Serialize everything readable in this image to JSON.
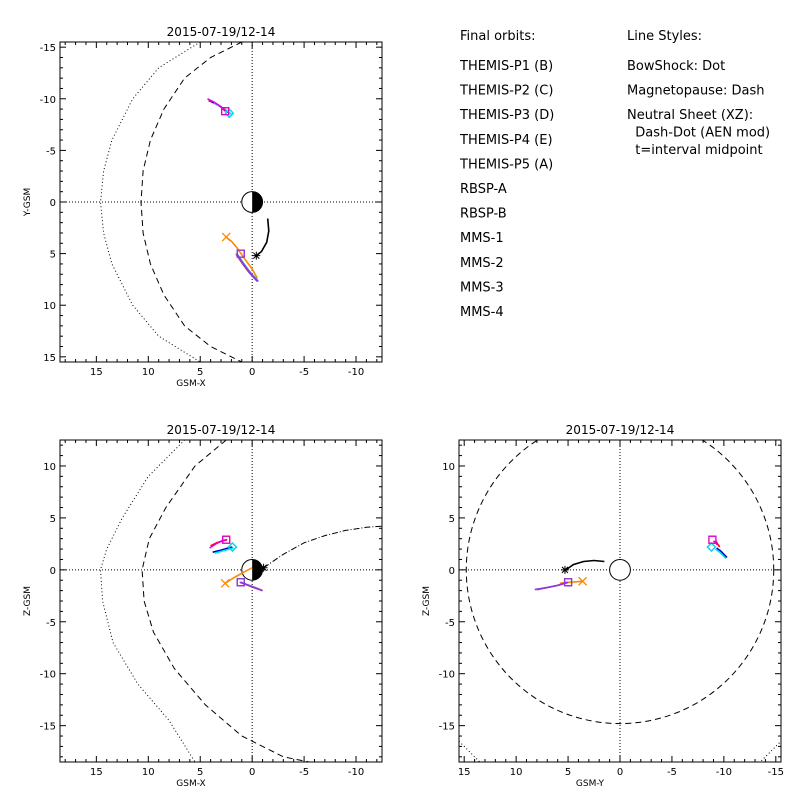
{
  "colors": {
    "THEMIS-P1": "#ff0000",
    "THEMIS-P2": "#00dd00",
    "THEMIS-P3": "#00e5e5",
    "THEMIS-P4": "#0000c8",
    "THEMIS-P5": "#e000e0",
    "RBSP-A": "#ff8800",
    "RBSP-B": "#000000",
    "MMS-1": "#f2b600",
    "MMS-2": "#d05050",
    "MMS-3": "#3f7fd0",
    "MMS-4": "#9a30e0"
  },
  "legend": {
    "orbits_header": "Final orbits:",
    "orbits": [
      {
        "label": "THEMIS-P1 (B)",
        "key": "THEMIS-P1"
      },
      {
        "label": "THEMIS-P2 (C)",
        "key": "THEMIS-P2"
      },
      {
        "label": "THEMIS-P3 (D)",
        "key": "THEMIS-P3"
      },
      {
        "label": "THEMIS-P4 (E)",
        "key": "THEMIS-P4"
      },
      {
        "label": "THEMIS-P5 (A)",
        "key": "THEMIS-P5"
      },
      {
        "label": "RBSP-A",
        "key": "RBSP-A"
      },
      {
        "label": "RBSP-B",
        "key": "RBSP-B"
      },
      {
        "label": "MMS-1",
        "key": "MMS-1"
      },
      {
        "label": "MMS-2",
        "key": "MMS-2"
      },
      {
        "label": "MMS-3",
        "key": "MMS-3"
      },
      {
        "label": "MMS-4",
        "key": "MMS-4"
      }
    ],
    "styles_header": "Line Styles:",
    "styles": [
      "BowShock: Dot",
      "Magnetopause: Dash",
      "Neutral Sheet (XZ):",
      "  Dash-Dot (AEN mod)",
      "  t=interval midpoint"
    ]
  },
  "chart_data": [
    {
      "type": "line",
      "id": "xy",
      "title": "2015-07-19/12-14",
      "xlabel": "GSM-X",
      "ylabel": "Y-GSM",
      "xlim": [
        18.5,
        -12.5
      ],
      "ylim": [
        -15.5,
        15.5
      ],
      "y_inverted": true,
      "xticks": [
        15,
        10,
        5,
        0,
        -5,
        -10
      ],
      "yticks": [
        -15,
        -10,
        -5,
        0,
        5,
        10,
        15
      ],
      "boundaries": {
        "bowshock": [
          [
            5,
            -15.5
          ],
          [
            9,
            -13
          ],
          [
            11.5,
            -10
          ],
          [
            13.5,
            -6
          ],
          [
            14.3,
            -3
          ],
          [
            14.6,
            0
          ],
          [
            14.3,
            3
          ],
          [
            13.5,
            6
          ],
          [
            11.5,
            10
          ],
          [
            9,
            13
          ],
          [
            5,
            15.5
          ]
        ],
        "magnetopause": [
          [
            1,
            -15.5
          ],
          [
            4,
            -14
          ],
          [
            6.5,
            -12
          ],
          [
            8.5,
            -9
          ],
          [
            9.8,
            -6
          ],
          [
            10.5,
            -3
          ],
          [
            10.7,
            0
          ],
          [
            10.5,
            3
          ],
          [
            9.8,
            6
          ],
          [
            8.5,
            9
          ],
          [
            6.5,
            12
          ],
          [
            4,
            14
          ],
          [
            1,
            15.5
          ]
        ],
        "neutral_sheet": []
      },
      "series": [
        {
          "name": "THEMIS-P1",
          "x": [
            4.2,
            3.6,
            3.0,
            2.6
          ],
          "y": [
            -9.8,
            -9.6,
            -9.2,
            -8.8
          ],
          "end": [
            2.6,
            -8.8
          ],
          "marker": "square"
        },
        {
          "name": "THEMIS-P4",
          "x": [
            3.9,
            3.3,
            2.7,
            2.2
          ],
          "y": [
            -9.7,
            -9.4,
            -9.0,
            -8.6
          ],
          "end": [
            2.2,
            -8.6
          ],
          "marker": "diamond"
        },
        {
          "name": "THEMIS-P3",
          "x": [
            3.7,
            3.1,
            2.5,
            2.0
          ],
          "y": [
            -9.6,
            -9.3,
            -8.9,
            -8.5
          ],
          "end": [
            2.2,
            -8.6
          ],
          "marker": "diamond"
        },
        {
          "name": "THEMIS-P5",
          "x": [
            4.3,
            3.7,
            3.1,
            2.6
          ],
          "y": [
            -10.0,
            -9.7,
            -9.3,
            -8.9
          ],
          "end": [
            2.6,
            -8.8
          ],
          "marker": "square"
        },
        {
          "name": "RBSP-A",
          "x": [
            2.5,
            2.0,
            1.5,
            0.8,
            0.0,
            -0.5
          ],
          "y": [
            3.4,
            3.8,
            4.4,
            5.4,
            6.5,
            7.4
          ],
          "end": [
            2.5,
            3.4
          ],
          "marker": "x"
        },
        {
          "name": "RBSP-B",
          "x": [
            -1.5,
            -1.6,
            -1.4,
            -0.9,
            -0.4
          ],
          "y": [
            1.6,
            2.8,
            3.9,
            4.8,
            5.2
          ],
          "end": [
            -0.4,
            5.2
          ],
          "marker": "star"
        },
        {
          "name": "MMS-1",
          "x": [
            1.6,
            1.0,
            0.4,
            -0.4
          ],
          "y": [
            5.0,
            5.9,
            6.7,
            7.6
          ],
          "end": [
            1.1,
            5.0
          ],
          "marker": "square"
        },
        {
          "name": "MMS-2",
          "x": [
            1.5,
            0.9,
            0.3,
            -0.5
          ],
          "y": [
            5.0,
            5.9,
            6.7,
            7.6
          ],
          "end": [
            1.1,
            5.0
          ],
          "marker": "square"
        },
        {
          "name": "MMS-3",
          "x": [
            1.4,
            0.8,
            0.2,
            -0.6
          ],
          "y": [
            5.1,
            6.0,
            6.8,
            7.7
          ],
          "end": [
            1.1,
            5.0
          ],
          "marker": "square"
        },
        {
          "name": "MMS-4",
          "x": [
            1.5,
            0.9,
            0.3,
            -0.5
          ],
          "y": [
            5.1,
            6.0,
            6.8,
            7.7
          ],
          "end": [
            1.1,
            5.0
          ],
          "marker": "square"
        }
      ]
    },
    {
      "type": "line",
      "id": "xz",
      "title": "2015-07-19/12-14",
      "xlabel": "GSM-X",
      "ylabel": "Z-GSM",
      "xlim": [
        18.5,
        -12.5
      ],
      "ylim": [
        -18.5,
        12.5
      ],
      "y_inverted": false,
      "xticks": [
        15,
        10,
        5,
        0,
        -5,
        -10
      ],
      "yticks": [
        10,
        5,
        0,
        -5,
        -10,
        -15
      ],
      "boundaries": {
        "bowshock": [
          [
            6.5,
            12.5
          ],
          [
            10,
            9
          ],
          [
            12.5,
            5
          ],
          [
            14,
            2
          ],
          [
            14.6,
            0
          ],
          [
            14.4,
            -3
          ],
          [
            13.4,
            -7
          ],
          [
            11,
            -11
          ],
          [
            8,
            -14.5
          ],
          [
            5.5,
            -18.5
          ]
        ],
        "magnetopause": [
          [
            2.5,
            12.5
          ],
          [
            5.5,
            10
          ],
          [
            8.3,
            6
          ],
          [
            9.9,
            3
          ],
          [
            10.6,
            0
          ],
          [
            10.4,
            -3
          ],
          [
            9.5,
            -6
          ],
          [
            7.5,
            -9.5
          ],
          [
            4.5,
            -13
          ],
          [
            1,
            -16
          ],
          [
            -3,
            -18
          ],
          [
            -5.5,
            -18.5
          ]
        ],
        "neutral_sheet": [
          [
            -1.1,
            0.2
          ],
          [
            -3,
            1.5
          ],
          [
            -5,
            2.6
          ],
          [
            -7,
            3.3
          ],
          [
            -9,
            3.8
          ],
          [
            -11,
            4.1
          ],
          [
            -12.5,
            4.2
          ]
        ]
      },
      "series": [
        {
          "name": "THEMIS-P1",
          "x": [
            4.0,
            3.4,
            2.8,
            2.4
          ],
          "y": [
            2.3,
            2.6,
            2.8,
            2.9
          ],
          "end": [
            2.5,
            2.9
          ],
          "marker": "square"
        },
        {
          "name": "THEMIS-P4",
          "x": [
            3.8,
            3.0,
            2.3,
            1.9
          ],
          "y": [
            1.7,
            1.9,
            2.1,
            2.2
          ],
          "end": [
            1.9,
            2.2
          ],
          "marker": "diamond"
        },
        {
          "name": "THEMIS-P3",
          "x": [
            3.6,
            2.9,
            2.2,
            1.8
          ],
          "y": [
            1.6,
            1.8,
            2.0,
            2.1
          ],
          "end": [
            1.9,
            2.2
          ],
          "marker": "diamond"
        },
        {
          "name": "THEMIS-P5",
          "x": [
            4.1,
            3.5,
            2.9,
            2.5
          ],
          "y": [
            2.1,
            2.5,
            2.8,
            2.9
          ],
          "end": [
            2.5,
            2.9
          ],
          "marker": "square"
        },
        {
          "name": "RBSP-A",
          "x": [
            2.6,
            2.0,
            1.3,
            0.6,
            0.0
          ],
          "y": [
            -1.3,
            -0.9,
            -0.5,
            -0.1,
            0.2
          ],
          "end": [
            2.6,
            -1.3
          ],
          "marker": "x"
        },
        {
          "name": "RBSP-B",
          "x": [
            -1.1,
            -0.7,
            -0.3
          ],
          "y": [
            0.2,
            0.1,
            0.0
          ],
          "end": [
            -1.1,
            0.2
          ],
          "marker": "star"
        },
        {
          "name": "MMS-1",
          "x": [
            1.1,
            0.3,
            -0.5,
            -1.0
          ],
          "y": [
            -1.2,
            -1.5,
            -1.8,
            -2.0
          ],
          "end": [
            1.1,
            -1.2
          ],
          "marker": "square"
        },
        {
          "name": "MMS-2",
          "x": [
            1.1,
            0.3,
            -0.5,
            -1.0
          ],
          "y": [
            -1.2,
            -1.5,
            -1.8,
            -2.0
          ],
          "end": [
            1.1,
            -1.2
          ],
          "marker": "square"
        },
        {
          "name": "MMS-3",
          "x": [
            1.1,
            0.3,
            -0.5,
            -1.0
          ],
          "y": [
            -1.2,
            -1.5,
            -1.8,
            -2.0
          ],
          "end": [
            1.1,
            -1.2
          ],
          "marker": "square"
        },
        {
          "name": "MMS-4",
          "x": [
            1.2,
            0.4,
            -0.4,
            -1.0
          ],
          "y": [
            -1.2,
            -1.5,
            -1.8,
            -2.0
          ],
          "end": [
            1.1,
            -1.2
          ],
          "marker": "square"
        }
      ]
    },
    {
      "type": "line",
      "id": "yz",
      "title": "2015-07-19/12-14",
      "xlabel": "GSM-Y",
      "ylabel": "Z-GSM",
      "xlim": [
        15.5,
        -15.5
      ],
      "ylim": [
        -18.5,
        12.5
      ],
      "y_inverted": false,
      "xticks": [
        15,
        10,
        5,
        0,
        -5,
        -10,
        -15
      ],
      "yticks": [
        10,
        5,
        0,
        -5,
        -10,
        -15
      ],
      "boundaries": {
        "bowshock": [
          [
            15.5,
            -16.5
          ],
          [
            14.5,
            -17.5
          ],
          [
            13.5,
            -18.5
          ],
          [
            -13.5,
            -18.5
          ],
          [
            -14.5,
            -17.5
          ],
          [
            -15.5,
            -16.5
          ]
        ],
        "magnetopause_circle": {
          "cx": 0,
          "cy": 0,
          "r": 14.8
        },
        "neutral_sheet": []
      },
      "series": [
        {
          "name": "THEMIS-P1",
          "x": [
            -9.2,
            -9.4,
            -9.6
          ],
          "y": [
            2.8,
            2.5,
            2.2
          ],
          "end": [
            -8.9,
            2.9
          ],
          "marker": "square"
        },
        {
          "name": "THEMIS-P4",
          "x": [
            -9.3,
            -9.7,
            -10.0,
            -10.3
          ],
          "y": [
            2.1,
            1.8,
            1.5,
            1.2
          ],
          "end": [
            -8.8,
            2.2
          ],
          "marker": "diamond"
        },
        {
          "name": "THEMIS-P3",
          "x": [
            -9.2,
            -9.6,
            -9.9,
            -10.2
          ],
          "y": [
            2.0,
            1.7,
            1.4,
            1.1
          ],
          "end": [
            -8.8,
            2.2
          ],
          "marker": "diamond"
        },
        {
          "name": "THEMIS-P5",
          "x": [
            -9.0,
            -9.2,
            -9.4
          ],
          "y": [
            2.8,
            2.6,
            2.4
          ],
          "end": [
            -8.9,
            2.9
          ],
          "marker": "square"
        },
        {
          "name": "RBSP-A",
          "x": [
            5.8,
            5.0,
            4.2,
            3.6
          ],
          "y": [
            -1.3,
            -1.2,
            -1.15,
            -1.1
          ],
          "end": [
            3.6,
            -1.1
          ],
          "marker": "x"
        },
        {
          "name": "RBSP-B",
          "x": [
            5.2,
            4.5,
            3.5,
            2.5,
            1.5
          ],
          "y": [
            0.0,
            0.5,
            0.8,
            0.9,
            0.8
          ],
          "end": [
            5.3,
            0.0
          ],
          "marker": "star"
        },
        {
          "name": "MMS-1",
          "x": [
            5.0,
            6.0,
            7.0,
            8.0
          ],
          "y": [
            -1.2,
            -1.5,
            -1.7,
            -1.9
          ],
          "end": [
            5.0,
            -1.2
          ],
          "marker": "square"
        },
        {
          "name": "MMS-2",
          "x": [
            5.0,
            6.0,
            7.0,
            8.0
          ],
          "y": [
            -1.2,
            -1.5,
            -1.7,
            -1.9
          ],
          "end": [
            5.0,
            -1.2
          ],
          "marker": "square"
        },
        {
          "name": "MMS-3",
          "x": [
            5.0,
            6.0,
            7.0,
            8.0
          ],
          "y": [
            -1.2,
            -1.5,
            -1.7,
            -1.9
          ],
          "end": [
            5.0,
            -1.2
          ],
          "marker": "square"
        },
        {
          "name": "MMS-4",
          "x": [
            5.0,
            6.0,
            7.0,
            8.2
          ],
          "y": [
            -1.2,
            -1.5,
            -1.7,
            -1.9
          ],
          "end": [
            5.0,
            -1.2
          ],
          "marker": "square"
        }
      ]
    }
  ]
}
